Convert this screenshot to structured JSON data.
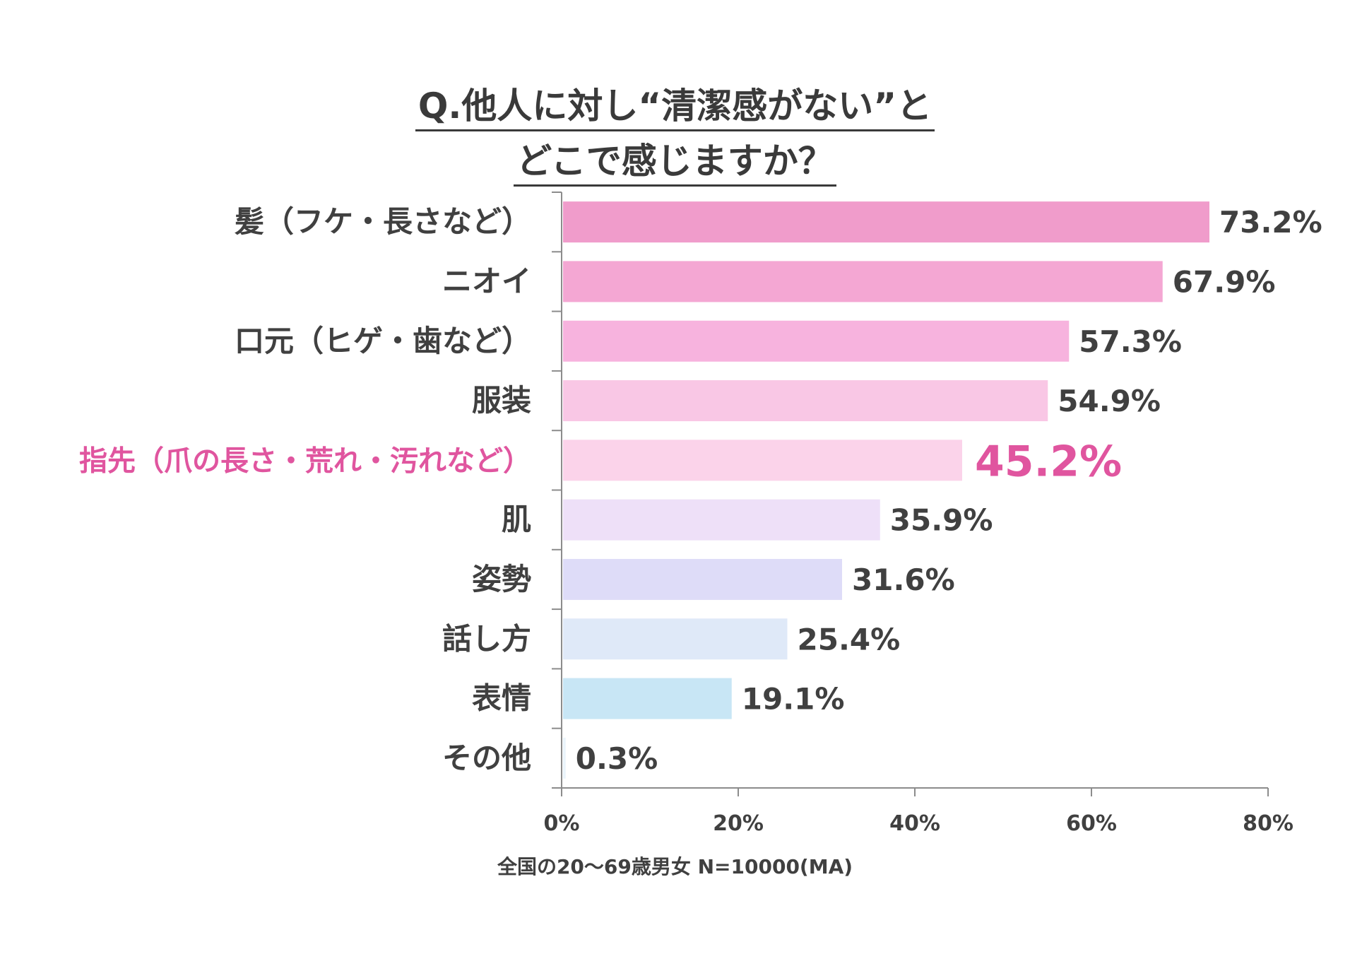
{
  "chart_data": {
    "type": "bar",
    "orientation": "horizontal",
    "title_lines": [
      "Q.他人に対し“清潔感がない”と",
      "どこで感じますか？"
    ],
    "categories": [
      "髪（フケ・長さなど）",
      "ニオイ",
      "口元（ヒゲ・歯など）",
      "服装",
      "指先（爪の長さ・荒れ・汚れなど）",
      "肌",
      "姿勢",
      "話し方",
      "表情",
      "その他"
    ],
    "values": [
      73.2,
      67.9,
      57.3,
      54.9,
      45.2,
      35.9,
      31.6,
      25.4,
      19.1,
      0.3
    ],
    "value_labels": [
      "73.2%",
      "67.9%",
      "57.3%",
      "54.9%",
      "45.2%",
      "35.9%",
      "31.6%",
      "25.4%",
      "19.1%",
      "0.3%"
    ],
    "bar_colors": [
      "#f09ccb",
      "#f4a7d3",
      "#f7b3de",
      "#f9c7e5",
      "#fbd3ea",
      "#eee0f8",
      "#dedcf8",
      "#dfe9f8",
      "#c8e6f5",
      "#eaf4fb"
    ],
    "highlight_index": 4,
    "highlight_color": "#e0559f",
    "xlim": [
      0,
      80
    ],
    "xticks": [
      0,
      20,
      40,
      60,
      80
    ],
    "xtick_labels": [
      "0%",
      "20%",
      "40%",
      "60%",
      "80%"
    ],
    "grid": false,
    "note": "全国の20～69歳男女 N=10000(MA)"
  }
}
